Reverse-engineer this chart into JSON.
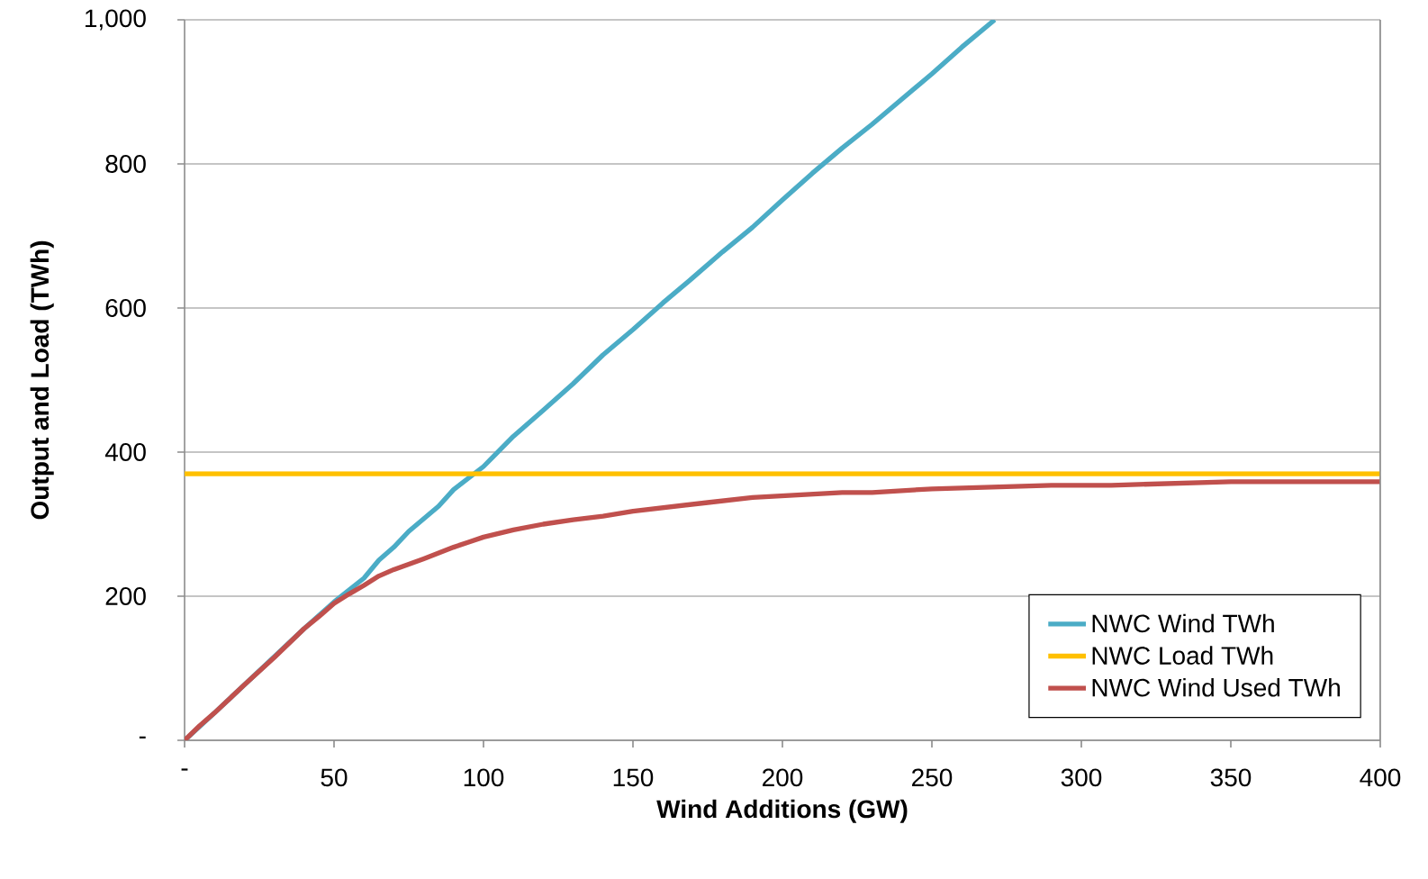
{
  "chart_data": {
    "type": "line",
    "xlabel": "Wind Additions (GW)",
    "ylabel": "Output and Load (TWh)",
    "xlim": [
      0,
      400
    ],
    "ylim": [
      0,
      1000
    ],
    "xticks": [
      {
        "value": 0,
        "label": "-"
      },
      50,
      100,
      150,
      200,
      250,
      300,
      350,
      400
    ],
    "yticks": [
      {
        "value": 0,
        "label": "-"
      },
      200,
      400,
      600,
      800,
      {
        "value": 1000,
        "label": "1,000"
      }
    ],
    "grid": "y",
    "legend": "bottom right",
    "marker": "none",
    "line_style": "solid",
    "series": [
      {
        "name": "NWC Wind TWh",
        "color": "#4bacc6",
        "x": [
          0,
          10,
          40,
          50,
          60,
          65,
          70,
          75,
          85,
          90,
          100,
          110,
          120,
          130,
          140,
          150,
          160,
          170,
          180,
          190,
          200,
          210,
          220,
          230,
          240,
          250,
          260,
          271
        ],
        "values": [
          0,
          38,
          155,
          192,
          225,
          250,
          268,
          290,
          325,
          348,
          380,
          422,
          458,
          495,
          535,
          570,
          607,
          642,
          678,
          712,
          750,
          787,
          822,
          855,
          890,
          925,
          962,
          1000
        ]
      },
      {
        "name": "NWC Load TWh",
        "color": "#ffc000",
        "x": [
          0,
          400
        ],
        "values": [
          370,
          370
        ]
      },
      {
        "name": "NWC Wind Used TWh",
        "color": "#c0504d",
        "x": [
          0,
          5,
          10,
          20,
          30,
          40,
          45,
          50,
          55,
          60,
          65,
          70,
          80,
          90,
          95,
          100,
          110,
          120,
          130,
          140,
          150,
          175,
          190,
          220,
          230,
          250,
          290,
          310,
          350,
          400
        ],
        "values": [
          0,
          20,
          38,
          77,
          115,
          155,
          172,
          190,
          203,
          215,
          228,
          237,
          252,
          268,
          275,
          282,
          292,
          300,
          306,
          311,
          318,
          330,
          337,
          344,
          344,
          349,
          354,
          354,
          359,
          359
        ]
      }
    ]
  }
}
